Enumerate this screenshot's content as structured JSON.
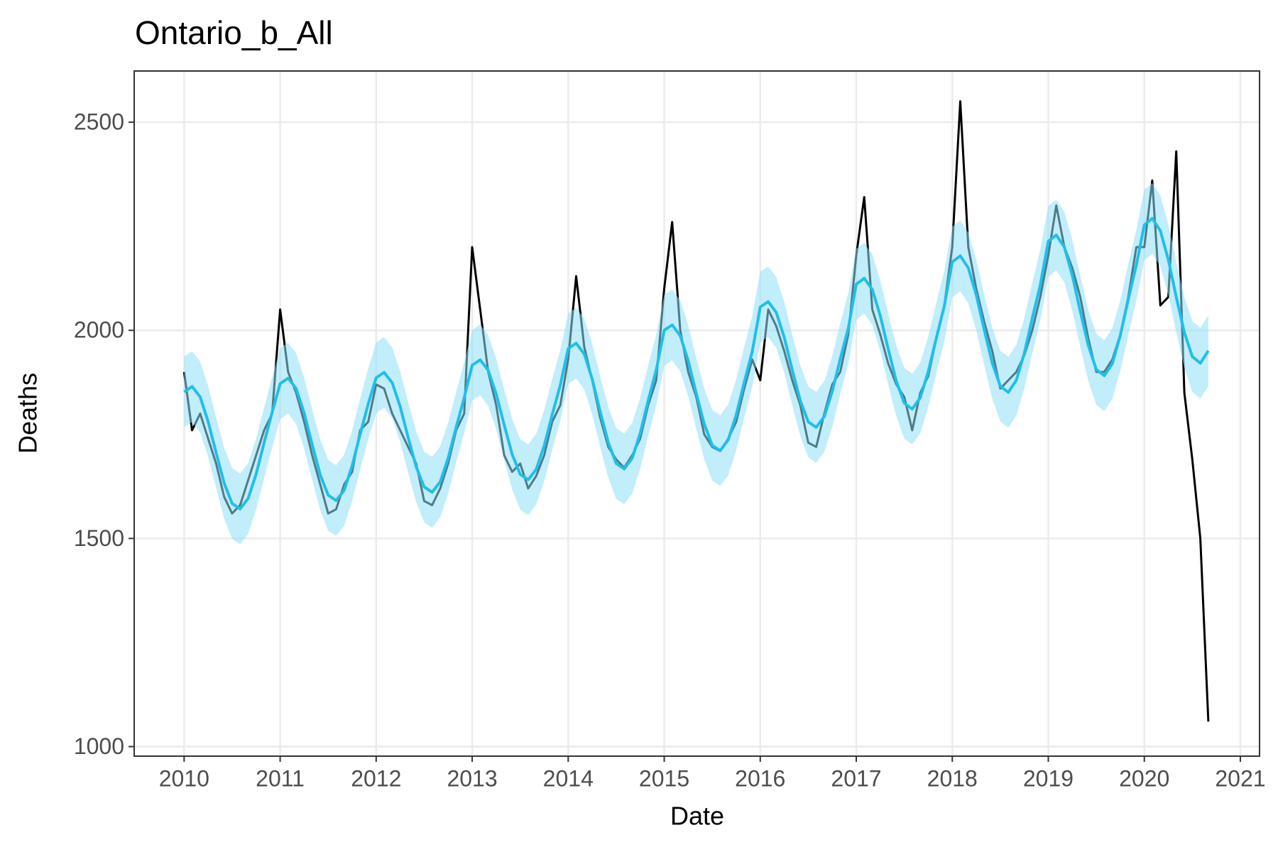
{
  "chart_data": {
    "type": "line",
    "title": "Ontario_b_All",
    "x_label": "Date",
    "y_label": "Deaths",
    "xlim": [
      2009.48,
      2021.2
    ],
    "ylim": [
      977,
      2623
    ],
    "xticks": [
      2010,
      2011,
      2012,
      2013,
      2014,
      2015,
      2016,
      2017,
      2018,
      2019,
      2020,
      2021
    ],
    "yticks": [
      1000,
      1500,
      2000,
      2500
    ],
    "grid": true,
    "x": [
      2010,
      2010.083,
      2010.167,
      2010.25,
      2010.333,
      2010.417,
      2010.5,
      2010.583,
      2010.667,
      2010.75,
      2010.833,
      2010.917,
      2011,
      2011.083,
      2011.167,
      2011.25,
      2011.333,
      2011.417,
      2011.5,
      2011.583,
      2011.667,
      2011.75,
      2011.833,
      2011.917,
      2012,
      2012.083,
      2012.167,
      2012.25,
      2012.333,
      2012.417,
      2012.5,
      2012.583,
      2012.667,
      2012.75,
      2012.833,
      2012.917,
      2013,
      2013.083,
      2013.167,
      2013.25,
      2013.333,
      2013.417,
      2013.5,
      2013.583,
      2013.667,
      2013.75,
      2013.833,
      2013.917,
      2014,
      2014.083,
      2014.167,
      2014.25,
      2014.333,
      2014.417,
      2014.5,
      2014.583,
      2014.667,
      2014.75,
      2014.833,
      2014.917,
      2015,
      2015.083,
      2015.167,
      2015.25,
      2015.333,
      2015.417,
      2015.5,
      2015.583,
      2015.667,
      2015.75,
      2015.833,
      2015.917,
      2016,
      2016.083,
      2016.167,
      2016.25,
      2016.333,
      2016.417,
      2016.5,
      2016.583,
      2016.667,
      2016.75,
      2016.833,
      2016.917,
      2017,
      2017.083,
      2017.167,
      2017.25,
      2017.333,
      2017.417,
      2017.5,
      2017.583,
      2017.667,
      2017.75,
      2017.833,
      2017.917,
      2018,
      2018.083,
      2018.167,
      2018.25,
      2018.333,
      2018.417,
      2018.5,
      2018.583,
      2018.667,
      2018.75,
      2018.833,
      2018.917,
      2019,
      2019.083,
      2019.167,
      2019.25,
      2019.333,
      2019.417,
      2019.5,
      2019.583,
      2019.667,
      2019.75,
      2019.833,
      2019.917,
      2020,
      2020.083,
      2020.167,
      2020.25,
      2020.333,
      2020.417,
      2020.5,
      2020.583,
      2020.667
    ],
    "series": [
      {
        "color": "#000000",
        "values": [
          1900,
          1760,
          1800,
          1740,
          1680,
          1600,
          1560,
          1580,
          1640,
          1700,
          1760,
          1800,
          2050,
          1900,
          1850,
          1780,
          1700,
          1630,
          1560,
          1570,
          1630,
          1660,
          1760,
          1780,
          1870,
          1860,
          1800,
          1760,
          1720,
          1680,
          1590,
          1580,
          1620,
          1680,
          1760,
          1800,
          2200,
          2050,
          1900,
          1820,
          1700,
          1660,
          1680,
          1620,
          1650,
          1700,
          1780,
          1820,
          1930,
          2130,
          1960,
          1880,
          1790,
          1720,
          1690,
          1670,
          1700,
          1740,
          1820,
          1880,
          2100,
          2260,
          2000,
          1900,
          1840,
          1750,
          1720,
          1710,
          1740,
          1780,
          1860,
          1930,
          1880,
          2050,
          2010,
          1950,
          1880,
          1820,
          1730,
          1720,
          1800,
          1870,
          1900,
          1990,
          2180,
          2320,
          2050,
          1990,
          1920,
          1870,
          1840,
          1760,
          1850,
          1890,
          1980,
          2060,
          2200,
          2550,
          2200,
          2100,
          2020,
          1950,
          1860,
          1880,
          1900,
          1940,
          2000,
          2080,
          2180,
          2300,
          2200,
          2150,
          2080,
          1980,
          1900,
          1900,
          1930,
          1990,
          2080,
          2200,
          2200,
          2360,
          2060,
          2080,
          2430,
          1850,
          1690,
          1500,
          1060
        ]
      },
      {
        "color": "#1fbfea",
        "band_color": "#8fdff5",
        "values": [
          1852,
          1865,
          1840,
          1781,
          1706,
          1633,
          1584,
          1571,
          1596,
          1655,
          1730,
          1803,
          1872,
          1885,
          1860,
          1801,
          1726,
          1653,
          1604,
          1591,
          1616,
          1675,
          1750,
          1823,
          1886,
          1899,
          1874,
          1817,
          1743,
          1672,
          1624,
          1611,
          1636,
          1693,
          1767,
          1838,
          1916,
          1929,
          1904,
          1847,
          1773,
          1702,
          1654,
          1641,
          1666,
          1723,
          1797,
          1868,
          1956,
          1969,
          1943,
          1883,
          1805,
          1731,
          1680,
          1667,
          1693,
          1753,
          1831,
          1905,
          2000,
          2013,
          1987,
          1927,
          1849,
          1775,
          1724,
          1711,
          1737,
          1797,
          1875,
          1949,
          2056,
          2069,
          2043,
          1983,
          1905,
          1831,
          1780,
          1767,
          1793,
          1853,
          1931,
          2005,
          2111,
          2125,
          2098,
          2035,
          1955,
          1878,
          1825,
          1811,
          1838,
          1901,
          1981,
          2058,
          2164,
          2179,
          2150,
          2085,
          2001,
          1921,
          1866,
          1851,
          1880,
          1945,
          2029,
          2109,
          2214,
          2229,
          2200,
          2132,
          2046,
          1963,
          1906,
          1891,
          1920,
          1988,
          2074,
          2157,
          2253,
          2269,
          2239,
          2170,
          2080,
          1995,
          1937,
          1921,
          1951
        ],
        "lower": [
          1767,
          1780,
          1755,
          1696,
          1621,
          1548,
          1499,
          1486,
          1511,
          1570,
          1645,
          1718,
          1787,
          1800,
          1775,
          1716,
          1641,
          1568,
          1519,
          1506,
          1531,
          1590,
          1665,
          1738,
          1801,
          1814,
          1789,
          1732,
          1658,
          1587,
          1539,
          1526,
          1551,
          1608,
          1682,
          1753,
          1831,
          1844,
          1819,
          1762,
          1688,
          1617,
          1569,
          1556,
          1581,
          1638,
          1712,
          1783,
          1871,
          1884,
          1858,
          1798,
          1720,
          1646,
          1595,
          1582,
          1608,
          1668,
          1746,
          1820,
          1915,
          1928,
          1902,
          1842,
          1764,
          1690,
          1639,
          1626,
          1652,
          1712,
          1790,
          1864,
          1971,
          1984,
          1958,
          1898,
          1820,
          1746,
          1695,
          1682,
          1708,
          1768,
          1846,
          1920,
          2026,
          2040,
          2013,
          1950,
          1870,
          1793,
          1740,
          1726,
          1753,
          1816,
          1896,
          1973,
          2079,
          2094,
          2065,
          2000,
          1916,
          1836,
          1781,
          1766,
          1795,
          1860,
          1944,
          2024,
          2129,
          2144,
          2115,
          2047,
          1961,
          1878,
          1821,
          1806,
          1835,
          1903,
          1989,
          2072,
          2168,
          2184,
          2154,
          2085,
          1995,
          1910,
          1852,
          1836,
          1866
        ],
        "upper": [
          1937,
          1950,
          1925,
          1866,
          1791,
          1718,
          1669,
          1656,
          1681,
          1740,
          1815,
          1888,
          1957,
          1970,
          1945,
          1886,
          1811,
          1738,
          1689,
          1676,
          1701,
          1760,
          1835,
          1908,
          1971,
          1984,
          1959,
          1902,
          1828,
          1757,
          1709,
          1696,
          1721,
          1778,
          1852,
          1923,
          2001,
          2014,
          1989,
          1932,
          1858,
          1787,
          1739,
          1726,
          1751,
          1808,
          1882,
          1953,
          2041,
          2054,
          2028,
          1968,
          1890,
          1816,
          1765,
          1752,
          1778,
          1838,
          1916,
          1990,
          2085,
          2098,
          2072,
          2012,
          1934,
          1860,
          1809,
          1796,
          1822,
          1882,
          1960,
          2034,
          2141,
          2154,
          2128,
          2068,
          1990,
          1916,
          1865,
          1852,
          1878,
          1938,
          2016,
          2090,
          2196,
          2210,
          2183,
          2120,
          2040,
          1963,
          1910,
          1896,
          1923,
          1986,
          2066,
          2143,
          2249,
          2264,
          2235,
          2170,
          2086,
          2006,
          1951,
          1936,
          1965,
          2030,
          2114,
          2194,
          2299,
          2314,
          2285,
          2217,
          2131,
          2048,
          1991,
          1976,
          2005,
          2073,
          2159,
          2242,
          2338,
          2354,
          2324,
          2255,
          2165,
          2080,
          2022,
          2006,
          2036
        ]
      }
    ]
  }
}
